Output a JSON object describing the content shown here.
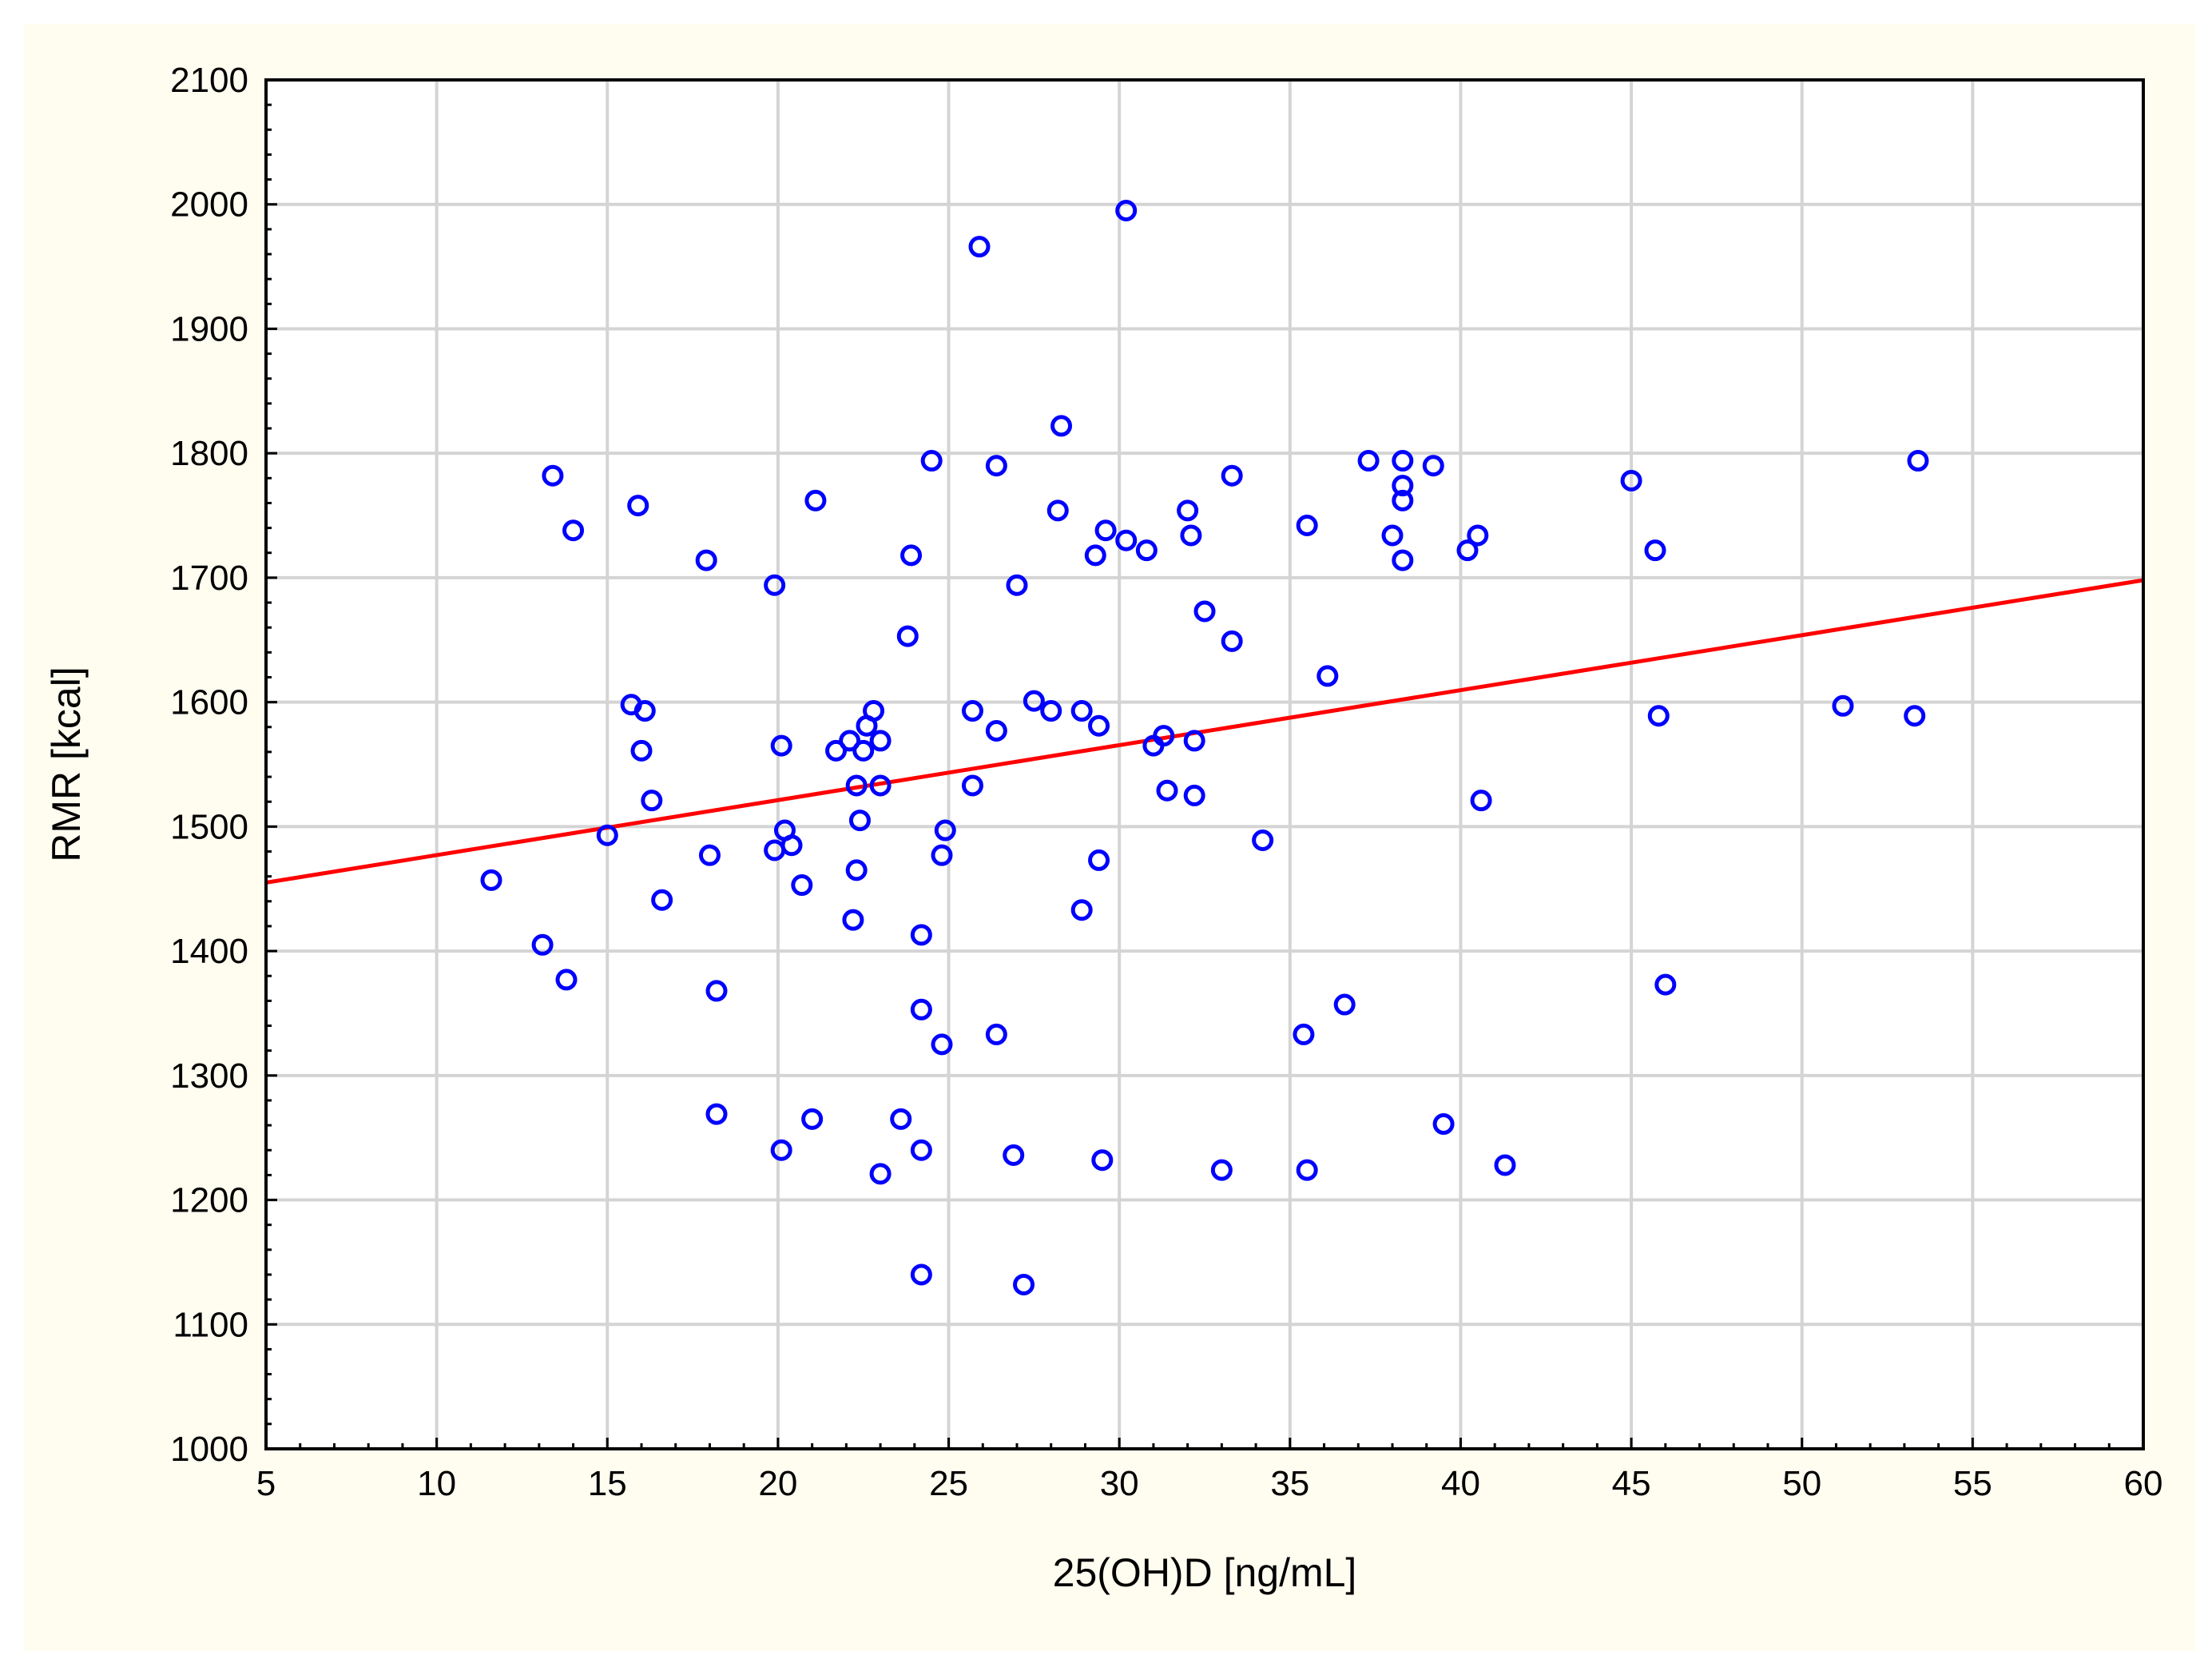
{
  "chart_data": {
    "type": "scatter",
    "title": "",
    "xlabel": "25(OH)D [ng/mL]",
    "ylabel": "RMR [kcal]",
    "xlim": [
      5,
      60
    ],
    "ylim": [
      1000,
      2100
    ],
    "xticks": [
      5,
      10,
      15,
      20,
      25,
      30,
      35,
      40,
      45,
      50,
      55,
      60
    ],
    "yticks": [
      1000,
      1100,
      1200,
      1300,
      1400,
      1500,
      1600,
      1700,
      1800,
      1900,
      2000,
      2100
    ],
    "grid": true,
    "colors": {
      "points": "#0000ff",
      "fit_line": "#ff0000",
      "grid": "#d4d4d4",
      "background": "#fffdf0"
    },
    "fit_line": {
      "x": [
        5,
        60
      ],
      "y": [
        1455,
        1698
      ]
    },
    "points": [
      {
        "x": 11.6,
        "y": 1457
      },
      {
        "x": 13.1,
        "y": 1405
      },
      {
        "x": 13.4,
        "y": 1782
      },
      {
        "x": 13.8,
        "y": 1377
      },
      {
        "x": 14.0,
        "y": 1738
      },
      {
        "x": 15.0,
        "y": 1493
      },
      {
        "x": 15.7,
        "y": 1598
      },
      {
        "x": 15.9,
        "y": 1758
      },
      {
        "x": 16.0,
        "y": 1561
      },
      {
        "x": 16.1,
        "y": 1593
      },
      {
        "x": 16.3,
        "y": 1521
      },
      {
        "x": 16.6,
        "y": 1441
      },
      {
        "x": 17.9,
        "y": 1714
      },
      {
        "x": 18.0,
        "y": 1477
      },
      {
        "x": 18.2,
        "y": 1368
      },
      {
        "x": 18.2,
        "y": 1269
      },
      {
        "x": 19.9,
        "y": 1694
      },
      {
        "x": 19.9,
        "y": 1481
      },
      {
        "x": 20.1,
        "y": 1565
      },
      {
        "x": 20.2,
        "y": 1497
      },
      {
        "x": 20.1,
        "y": 1240
      },
      {
        "x": 20.4,
        "y": 1485
      },
      {
        "x": 20.7,
        "y": 1453
      },
      {
        "x": 21.0,
        "y": 1265
      },
      {
        "x": 21.1,
        "y": 1762
      },
      {
        "x": 21.7,
        "y": 1561
      },
      {
        "x": 22.1,
        "y": 1569
      },
      {
        "x": 22.2,
        "y": 1425
      },
      {
        "x": 22.3,
        "y": 1533
      },
      {
        "x": 22.3,
        "y": 1465
      },
      {
        "x": 22.4,
        "y": 1505
      },
      {
        "x": 22.5,
        "y": 1561
      },
      {
        "x": 22.6,
        "y": 1581
      },
      {
        "x": 22.8,
        "y": 1593
      },
      {
        "x": 23.0,
        "y": 1569
      },
      {
        "x": 23.0,
        "y": 1533
      },
      {
        "x": 23.0,
        "y": 1221
      },
      {
        "x": 23.6,
        "y": 1265
      },
      {
        "x": 23.8,
        "y": 1653
      },
      {
        "x": 23.9,
        "y": 1718
      },
      {
        "x": 24.2,
        "y": 1413
      },
      {
        "x": 24.2,
        "y": 1353
      },
      {
        "x": 24.2,
        "y": 1240
      },
      {
        "x": 24.2,
        "y": 1140
      },
      {
        "x": 24.5,
        "y": 1794
      },
      {
        "x": 24.8,
        "y": 1477
      },
      {
        "x": 24.8,
        "y": 1325
      },
      {
        "x": 24.9,
        "y": 1497
      },
      {
        "x": 25.7,
        "y": 1593
      },
      {
        "x": 25.7,
        "y": 1533
      },
      {
        "x": 25.9,
        "y": 1966
      },
      {
        "x": 26.4,
        "y": 1577
      },
      {
        "x": 26.4,
        "y": 1790
      },
      {
        "x": 26.4,
        "y": 1333
      },
      {
        "x": 26.9,
        "y": 1236
      },
      {
        "x": 27.0,
        "y": 1694
      },
      {
        "x": 27.2,
        "y": 1132
      },
      {
        "x": 27.5,
        "y": 1601
      },
      {
        "x": 28.0,
        "y": 1593
      },
      {
        "x": 28.2,
        "y": 1754
      },
      {
        "x": 28.3,
        "y": 1822
      },
      {
        "x": 28.9,
        "y": 1593
      },
      {
        "x": 28.9,
        "y": 1433
      },
      {
        "x": 29.3,
        "y": 1718
      },
      {
        "x": 29.4,
        "y": 1581
      },
      {
        "x": 29.4,
        "y": 1473
      },
      {
        "x": 29.5,
        "y": 1232
      },
      {
        "x": 29.6,
        "y": 1738
      },
      {
        "x": 30.2,
        "y": 1730
      },
      {
        "x": 30.2,
        "y": 1995
      },
      {
        "x": 30.8,
        "y": 1722
      },
      {
        "x": 31.0,
        "y": 1565
      },
      {
        "x": 31.3,
        "y": 1573
      },
      {
        "x": 31.4,
        "y": 1529
      },
      {
        "x": 32.0,
        "y": 1754
      },
      {
        "x": 32.1,
        "y": 1734
      },
      {
        "x": 32.2,
        "y": 1569
      },
      {
        "x": 32.2,
        "y": 1525
      },
      {
        "x": 32.5,
        "y": 1673
      },
      {
        "x": 33.0,
        "y": 1224
      },
      {
        "x": 33.3,
        "y": 1782
      },
      {
        "x": 33.3,
        "y": 1649
      },
      {
        "x": 34.2,
        "y": 1489
      },
      {
        "x": 35.4,
        "y": 1333
      },
      {
        "x": 35.5,
        "y": 1742
      },
      {
        "x": 35.5,
        "y": 1224
      },
      {
        "x": 36.1,
        "y": 1621
      },
      {
        "x": 36.6,
        "y": 1357
      },
      {
        "x": 37.3,
        "y": 1794
      },
      {
        "x": 38.0,
        "y": 1734
      },
      {
        "x": 38.3,
        "y": 1794
      },
      {
        "x": 38.3,
        "y": 1774
      },
      {
        "x": 38.3,
        "y": 1762
      },
      {
        "x": 38.3,
        "y": 1714
      },
      {
        "x": 39.2,
        "y": 1790
      },
      {
        "x": 39.5,
        "y": 1261
      },
      {
        "x": 40.2,
        "y": 1722
      },
      {
        "x": 40.5,
        "y": 1734
      },
      {
        "x": 40.6,
        "y": 1521
      },
      {
        "x": 41.3,
        "y": 1228
      },
      {
        "x": 45.0,
        "y": 1778
      },
      {
        "x": 45.7,
        "y": 1722
      },
      {
        "x": 45.8,
        "y": 1589
      },
      {
        "x": 46.0,
        "y": 1373
      },
      {
        "x": 51.2,
        "y": 1597
      },
      {
        "x": 53.3,
        "y": 1589
      },
      {
        "x": 53.4,
        "y": 1794
      }
    ]
  }
}
